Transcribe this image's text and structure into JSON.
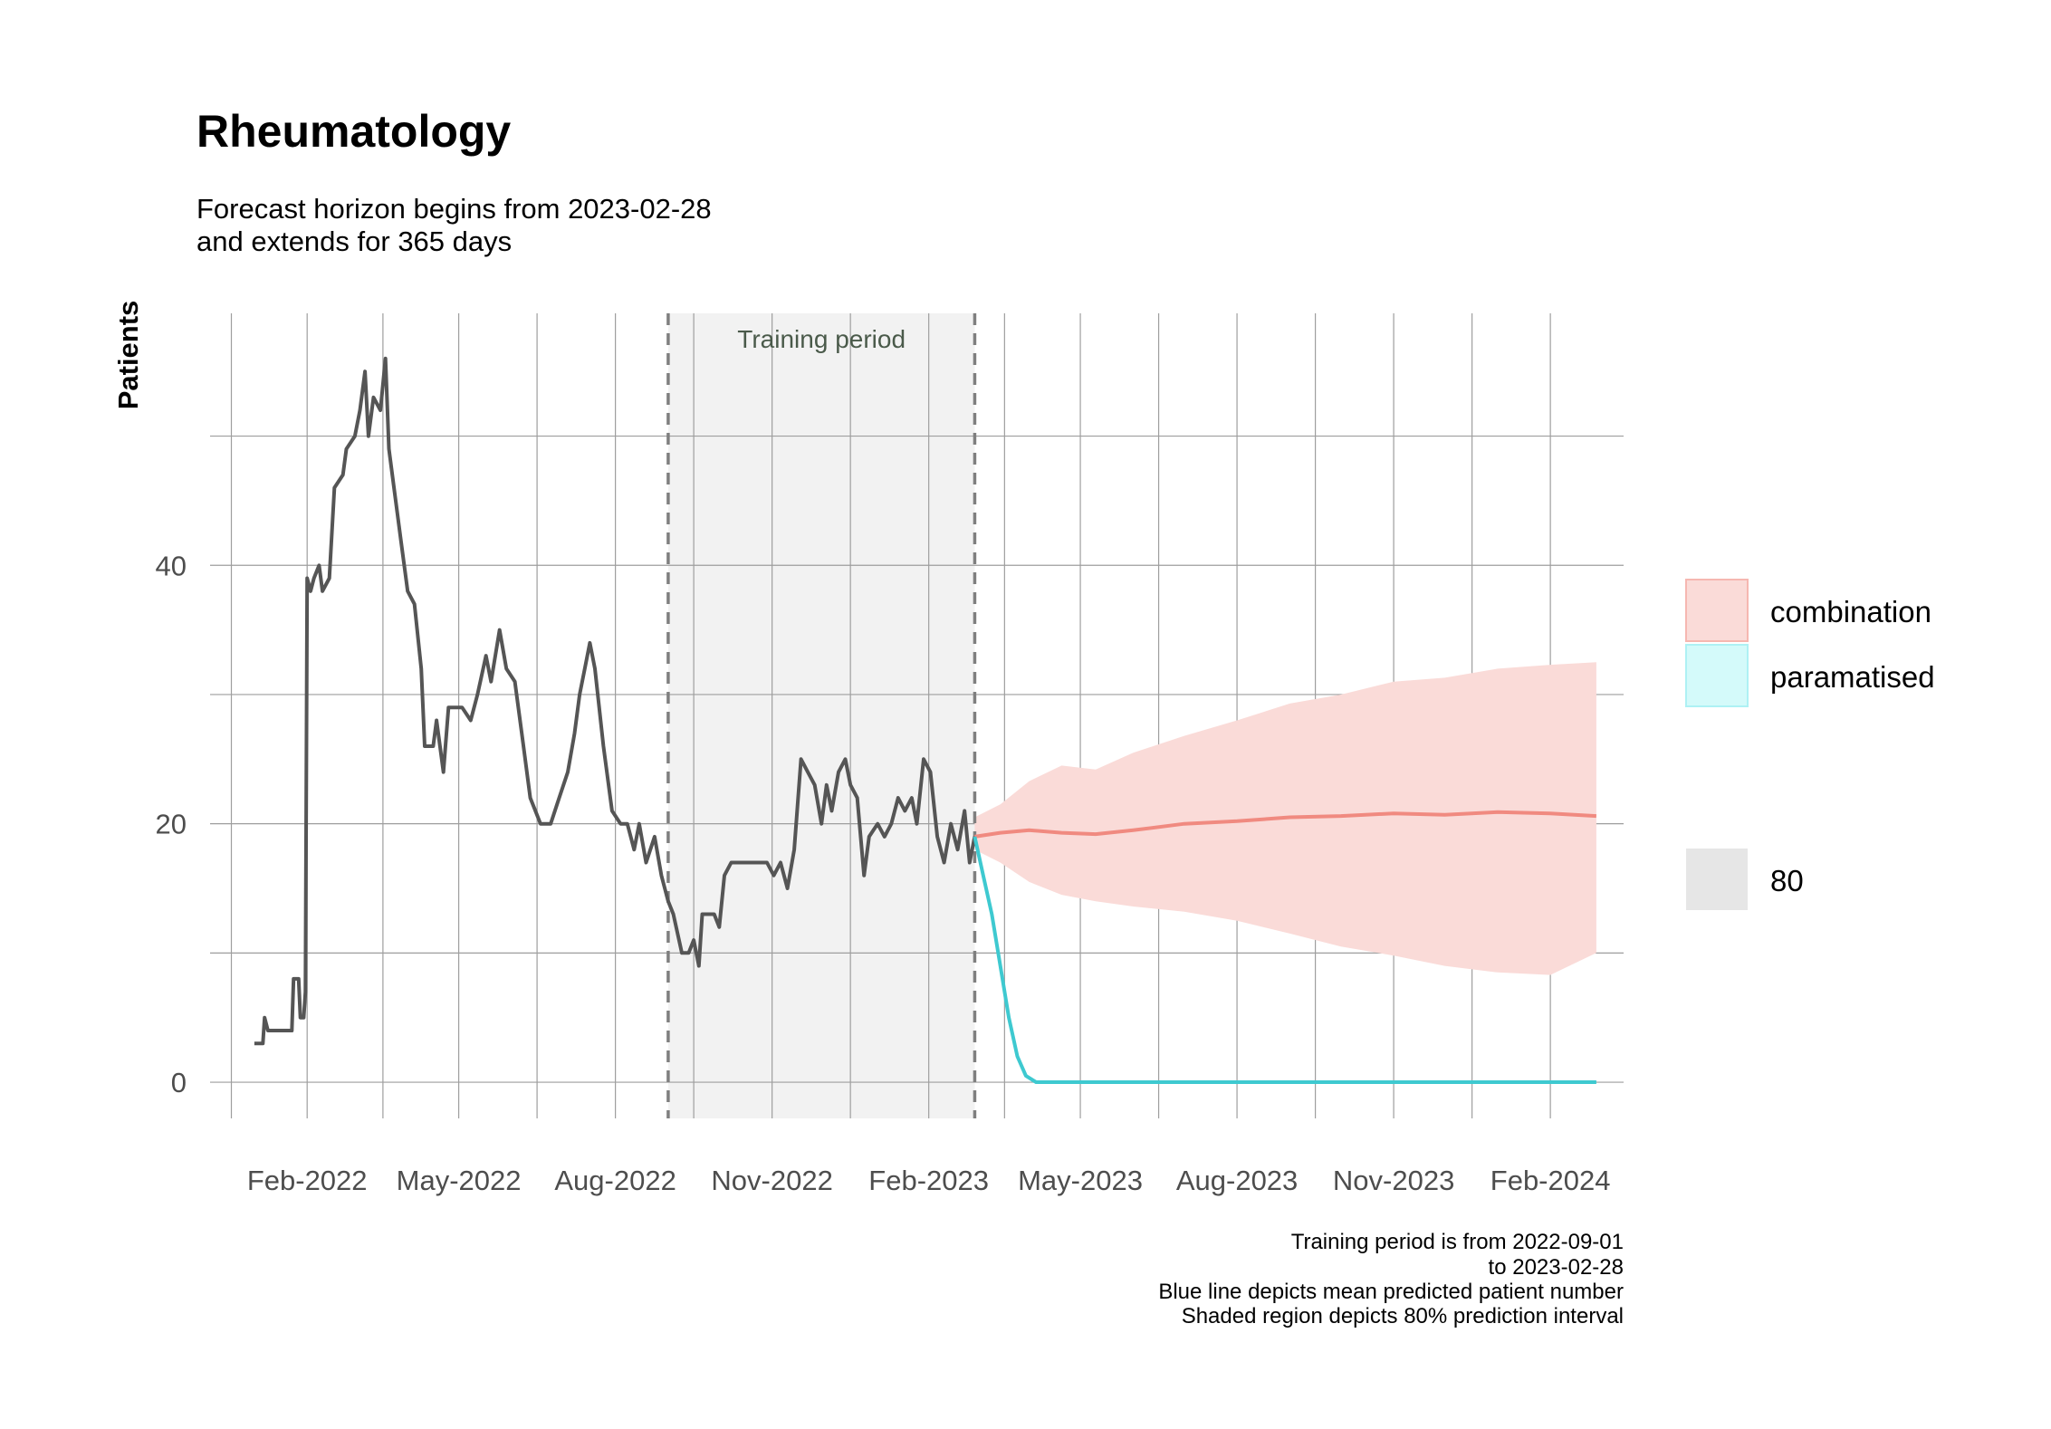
{
  "chart_data": {
    "type": "line",
    "title": "Rheumatology",
    "subtitle_lines": [
      "Forecast horizon begins from 2023-02-28",
      "and extends for 365 days"
    ],
    "ylabel": "Patients",
    "xlabel": "",
    "x_tick_labels": [
      "Feb-2022",
      "May-2022",
      "Aug-2022",
      "Nov-2022",
      "Feb-2023",
      "May-2023",
      "Aug-2023",
      "Nov-2023",
      "Feb-2024"
    ],
    "x_ticks": [
      "2022-02-01",
      "2022-05-01",
      "2022-08-01",
      "2022-11-01",
      "2023-02-01",
      "2023-05-01",
      "2023-08-01",
      "2023-11-01",
      "2024-02-01"
    ],
    "y_ticks": [
      0,
      20,
      40
    ],
    "y_labels": [
      "0",
      "20",
      "40"
    ],
    "xlim": [
      "2021-12-06",
      "2024-03-15"
    ],
    "ylim": [
      -2.8,
      59.5
    ],
    "grid": true,
    "legend_position": "right",
    "training_period": {
      "start": "2022-09-01",
      "end": "2023-02-28",
      "label": "Training period"
    },
    "observed": {
      "color": "#555555",
      "points": [
        [
          "2022-01-01",
          3
        ],
        [
          "2022-01-06",
          3
        ],
        [
          "2022-01-07",
          5
        ],
        [
          "2022-01-09",
          4
        ],
        [
          "2022-01-18",
          4
        ],
        [
          "2022-01-23",
          4
        ],
        [
          "2022-01-24",
          8
        ],
        [
          "2022-01-27",
          8
        ],
        [
          "2022-01-28",
          5
        ],
        [
          "2022-01-30",
          5
        ],
        [
          "2022-01-31",
          7
        ],
        [
          "2022-02-01",
          39
        ],
        [
          "2022-02-03",
          38
        ],
        [
          "2022-02-05",
          39
        ],
        [
          "2022-02-08",
          40
        ],
        [
          "2022-02-10",
          38
        ],
        [
          "2022-02-14",
          39
        ],
        [
          "2022-02-17",
          46
        ],
        [
          "2022-02-22",
          47
        ],
        [
          "2022-02-24",
          49
        ],
        [
          "2022-03-01",
          50
        ],
        [
          "2022-03-04",
          52
        ],
        [
          "2022-03-07",
          55
        ],
        [
          "2022-03-09",
          50
        ],
        [
          "2022-03-12",
          53
        ],
        [
          "2022-03-16",
          52
        ],
        [
          "2022-03-19",
          56
        ],
        [
          "2022-03-21",
          49
        ],
        [
          "2022-03-24",
          46
        ],
        [
          "2022-03-28",
          42
        ],
        [
          "2022-04-01",
          38
        ],
        [
          "2022-04-05",
          37
        ],
        [
          "2022-04-09",
          32
        ],
        [
          "2022-04-11",
          26
        ],
        [
          "2022-04-16",
          26
        ],
        [
          "2022-04-18",
          28
        ],
        [
          "2022-04-22",
          24
        ],
        [
          "2022-04-25",
          29
        ],
        [
          "2022-05-03",
          29
        ],
        [
          "2022-05-08",
          28
        ],
        [
          "2022-05-12",
          30
        ],
        [
          "2022-05-17",
          33
        ],
        [
          "2022-05-20",
          31
        ],
        [
          "2022-05-25",
          35
        ],
        [
          "2022-05-29",
          32
        ],
        [
          "2022-06-03",
          31
        ],
        [
          "2022-06-08",
          26
        ],
        [
          "2022-06-12",
          22
        ],
        [
          "2022-06-18",
          20
        ],
        [
          "2022-06-24",
          20
        ],
        [
          "2022-06-29",
          22
        ],
        [
          "2022-07-04",
          24
        ],
        [
          "2022-07-08",
          27
        ],
        [
          "2022-07-11",
          30
        ],
        [
          "2022-07-14",
          32
        ],
        [
          "2022-07-17",
          34
        ],
        [
          "2022-07-20",
          32
        ],
        [
          "2022-07-25",
          26
        ],
        [
          "2022-07-30",
          21
        ],
        [
          "2022-08-04",
          20
        ],
        [
          "2022-08-08",
          20
        ],
        [
          "2022-08-12",
          18
        ],
        [
          "2022-08-15",
          20
        ],
        [
          "2022-08-19",
          17
        ],
        [
          "2022-08-24",
          19
        ],
        [
          "2022-08-28",
          16
        ],
        [
          "2022-09-01",
          14
        ],
        [
          "2022-09-04",
          13
        ],
        [
          "2022-09-09",
          10
        ],
        [
          "2022-09-13",
          10
        ],
        [
          "2022-09-16",
          11
        ],
        [
          "2022-09-19",
          9
        ],
        [
          "2022-09-21",
          13
        ],
        [
          "2022-09-28",
          13
        ],
        [
          "2022-10-01",
          12
        ],
        [
          "2022-10-04",
          16
        ],
        [
          "2022-10-08",
          17
        ],
        [
          "2022-10-14",
          17
        ],
        [
          "2022-10-20",
          17
        ],
        [
          "2022-10-25",
          17
        ],
        [
          "2022-10-29",
          17
        ],
        [
          "2022-11-02",
          16
        ],
        [
          "2022-11-06",
          17
        ],
        [
          "2022-11-10",
          15
        ],
        [
          "2022-11-14",
          18
        ],
        [
          "2022-11-18",
          25
        ],
        [
          "2022-11-22",
          24
        ],
        [
          "2022-11-26",
          23
        ],
        [
          "2022-11-30",
          20
        ],
        [
          "2022-12-03",
          23
        ],
        [
          "2022-12-06",
          21
        ],
        [
          "2022-12-10",
          24
        ],
        [
          "2022-12-14",
          25
        ],
        [
          "2022-12-17",
          23
        ],
        [
          "2022-12-21",
          22
        ],
        [
          "2022-12-25",
          16
        ],
        [
          "2022-12-28",
          19
        ],
        [
          "2023-01-02",
          20
        ],
        [
          "2023-01-06",
          19
        ],
        [
          "2023-01-10",
          20
        ],
        [
          "2023-01-14",
          22
        ],
        [
          "2023-01-18",
          21
        ],
        [
          "2023-01-22",
          22
        ],
        [
          "2023-01-25",
          20
        ],
        [
          "2023-01-29",
          25
        ],
        [
          "2023-02-02",
          24
        ],
        [
          "2023-02-06",
          19
        ],
        [
          "2023-02-10",
          17
        ],
        [
          "2023-02-14",
          20
        ],
        [
          "2023-02-18",
          18
        ],
        [
          "2023-02-22",
          21
        ],
        [
          "2023-02-25",
          17
        ],
        [
          "2023-02-28",
          19
        ]
      ]
    },
    "series": [
      {
        "name": "combination",
        "color": "#f08a80",
        "band_color": "#fadbd8",
        "points": [
          [
            "2023-02-28",
            19
          ],
          [
            "2023-03-15",
            19.3
          ],
          [
            "2023-04-01",
            19.5
          ],
          [
            "2023-04-20",
            19.3
          ],
          [
            "2023-05-10",
            19.2
          ],
          [
            "2023-06-01",
            19.5
          ],
          [
            "2023-07-01",
            20.0
          ],
          [
            "2023-08-01",
            20.2
          ],
          [
            "2023-09-01",
            20.5
          ],
          [
            "2023-10-01",
            20.6
          ],
          [
            "2023-11-01",
            20.8
          ],
          [
            "2023-12-01",
            20.7
          ],
          [
            "2024-01-01",
            20.9
          ],
          [
            "2024-02-01",
            20.8
          ],
          [
            "2024-02-28",
            20.6
          ]
        ],
        "upper": [
          [
            "2023-02-28",
            20.5
          ],
          [
            "2023-03-15",
            21.5
          ],
          [
            "2023-04-01",
            23.3
          ],
          [
            "2023-04-20",
            24.5
          ],
          [
            "2023-05-10",
            24.2
          ],
          [
            "2023-06-01",
            25.5
          ],
          [
            "2023-07-01",
            26.8
          ],
          [
            "2023-08-01",
            28.0
          ],
          [
            "2023-09-01",
            29.3
          ],
          [
            "2023-10-01",
            30.0
          ],
          [
            "2023-11-01",
            31.0
          ],
          [
            "2023-12-01",
            31.3
          ],
          [
            "2024-01-01",
            32.0
          ],
          [
            "2024-02-01",
            32.3
          ],
          [
            "2024-02-28",
            32.5
          ]
        ],
        "lower": [
          [
            "2023-02-28",
            18.0
          ],
          [
            "2023-03-15",
            17.0
          ],
          [
            "2023-04-01",
            15.5
          ],
          [
            "2023-04-20",
            14.5
          ],
          [
            "2023-05-10",
            14.0
          ],
          [
            "2023-06-01",
            13.6
          ],
          [
            "2023-07-01",
            13.2
          ],
          [
            "2023-08-01",
            12.5
          ],
          [
            "2023-09-01",
            11.5
          ],
          [
            "2023-10-01",
            10.5
          ],
          [
            "2023-11-01",
            9.8
          ],
          [
            "2023-12-01",
            9.0
          ],
          [
            "2024-01-01",
            8.5
          ],
          [
            "2024-02-01",
            8.3
          ],
          [
            "2024-02-28",
            10.0
          ]
        ]
      },
      {
        "name": "paramatised",
        "color": "#3ec9d0",
        "band_color": "#d4fafa",
        "points": [
          [
            "2023-02-28",
            19
          ],
          [
            "2023-03-05",
            16
          ],
          [
            "2023-03-10",
            13
          ],
          [
            "2023-03-15",
            9
          ],
          [
            "2023-03-20",
            5
          ],
          [
            "2023-03-25",
            2
          ],
          [
            "2023-03-30",
            0.5
          ],
          [
            "2023-04-05",
            0
          ],
          [
            "2024-02-28",
            0
          ]
        ]
      }
    ],
    "legend": {
      "series_labels": [
        "combination",
        "paramatised"
      ],
      "interval_label": "80"
    },
    "caption_lines": [
      "Training period is from 2022-09-01",
      "to 2023-02-28",
      "Blue line depicts mean predicted patient number",
      "Shaded region depicts 80% prediction interval"
    ]
  }
}
